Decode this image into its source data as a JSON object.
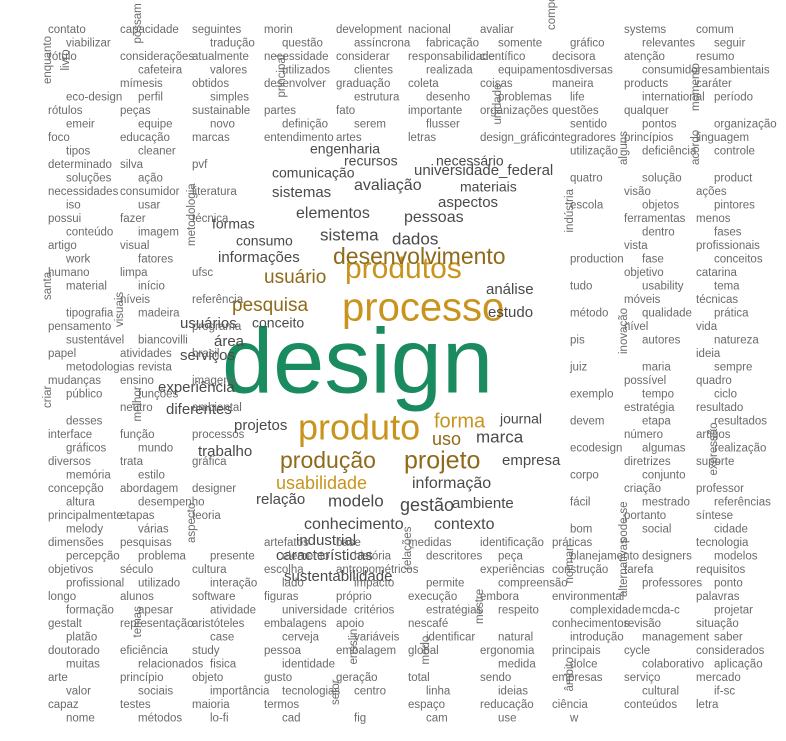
{
  "colors": {
    "hero": "#1a8a5f",
    "accent": "#c9941e",
    "accent_dark": "#8e6a1a",
    "text": "#4a4a4a",
    "muted": "#6b6b6b"
  },
  "cloud": {
    "hero": "design",
    "top": [
      "processo",
      "produtos",
      "produto",
      "desenvolvimento",
      "produção",
      "projeto",
      "usuário",
      "pesquisa",
      "forma",
      "usabilidade",
      "uso"
    ],
    "mid": [
      "informações",
      "sistema",
      "dados",
      "elementos",
      "pessoas",
      "avaliação",
      "aspectos",
      "análise",
      "estudo",
      "marca",
      "informação",
      "gestão",
      "modelo",
      "conhecimento",
      "contexto",
      "industrial",
      "características",
      "sustentabilidade",
      "empresa",
      "ambiente",
      "journal",
      "relação",
      "trabalho",
      "projetos",
      "diferentes",
      "experiência",
      "serviços",
      "área",
      "conceito",
      "usuários",
      "consumo",
      "formas",
      "sistemas",
      "universidade_federal",
      "materiais",
      "comunicação",
      "engenharia",
      "recursos",
      "necessário"
    ],
    "small": [
      "contato",
      "capacidade",
      "seguintes",
      "morin",
      "development",
      "nacional",
      "avaliar",
      "componentes",
      "systems",
      "comum",
      "viabilizar",
      "possam",
      "tradução",
      "questão",
      "assíncrona",
      "fabricação",
      "somente",
      "gráfico",
      "relevantes",
      "seguir",
      "rótulo",
      "considerações",
      "atualmente",
      "necessidade",
      "considerar",
      "responsabilidade",
      "científico",
      "decisora",
      "atenção",
      "resumo",
      "livro",
      "cafeteira",
      "valores",
      "utilizados",
      "clientes",
      "realizada",
      "equipamentos",
      "diversas",
      "consumidores",
      "ambientais",
      "enquanto",
      "mímesis",
      "obtidos",
      "desenvolver",
      "graduação",
      "coleta",
      "coisas",
      "maneira",
      "products",
      "caráter",
      "eco-design",
      "perfil",
      "simples",
      "principal",
      "estrutura",
      "desenho",
      "problemas",
      "life",
      "international",
      "período",
      "rótulos",
      "peças",
      "sustainable",
      "partes",
      "fato",
      "importante",
      "organizações",
      "questões",
      "qualquer",
      "momento",
      "emeir",
      "equipe",
      "novo",
      "definição",
      "serem",
      "flusser",
      "unidade",
      "sentido",
      "pontos",
      "organização",
      "foco",
      "educação",
      "marcas",
      "entendimento",
      "artes",
      "letras",
      "design_gráfico",
      "integradores",
      "princípios",
      "linguagem",
      "tipos",
      "cleaner",
      "utilização",
      "deficiência",
      "controle",
      "determinado",
      "silva",
      "pvf",
      "alguns",
      "acordo",
      "soluções",
      "ação",
      "quatro",
      "solução",
      "product",
      "necessidades",
      "consumidor",
      "literatura",
      "visão",
      "ações",
      "iso",
      "usar",
      "escola",
      "objetos",
      "pintores",
      "possui",
      "fazer",
      "técnica",
      "ferramentas",
      "menos",
      "conteúdo",
      "imagem",
      "indústria",
      "dentro",
      "fases",
      "artigo",
      "visual",
      "metodologia",
      "vista",
      "profissionais",
      "work",
      "fatores",
      "production",
      "fase",
      "conceitos",
      "humano",
      "limpa",
      "ufsc",
      "objetivo",
      "catarina",
      "material",
      "início",
      "tudo",
      "usability",
      "tema",
      "santa",
      "níveis",
      "referência",
      "móveis",
      "técnicas",
      "tipografia",
      "madeira",
      "método",
      "qualidade",
      "prática",
      "pensamento",
      "visuais",
      "programa",
      "nível",
      "vida",
      "sustentável",
      "biancovilli",
      "pis",
      "autores",
      "natureza",
      "papel",
      "atividades",
      "brasil",
      "inovação",
      "ideia",
      "metodologias",
      "revista",
      "juiz",
      "maria",
      "sempre",
      "mudanças",
      "ensino",
      "imagens",
      "possível",
      "quadro",
      "público",
      "funções",
      "exemplo",
      "tempo",
      "ciclo",
      "criar",
      "neutro",
      "ambiental",
      "estratégia",
      "resultado",
      "desses",
      "melhor",
      "devem",
      "etapa",
      "resultados",
      "interface",
      "função",
      "processos",
      "número",
      "artigos",
      "gráficos",
      "mundo",
      "ecodesign",
      "algumas",
      "realização",
      "diversos",
      "trata",
      "gráfica",
      "diretrizes",
      "suporte",
      "memória",
      "estilo",
      "corpo",
      "conjunto",
      "expressão",
      "concepção",
      "abordagem",
      "designer",
      "criação",
      "professor",
      "altura",
      "desempenho",
      "fácil",
      "mestrado",
      "referências",
      "principalmente",
      "etapas",
      "teoria",
      "portanto",
      "síntese",
      "melody",
      "várias",
      "bom",
      "social",
      "cidade",
      "dimensões",
      "pesquisas",
      "aspecto",
      "artefatos",
      "base",
      "medidas",
      "identificação",
      "práticas",
      "pode-se",
      "tecnologia",
      "percepção",
      "problema",
      "presente",
      "elemento",
      "história",
      "descritores",
      "peça",
      "planejamento",
      "designers",
      "modelos",
      "objetivos",
      "século",
      "cultura",
      "escolha",
      "antropométricos",
      "relações",
      "experiências",
      "construção",
      "tarefa",
      "requisitos",
      "profissional",
      "utilizado",
      "interação",
      "lado",
      "impacto",
      "permite",
      "compreensão",
      "norman",
      "professores",
      "ponto",
      "longo",
      "alunos",
      "software",
      "figuras",
      "próprio",
      "execução",
      "embora",
      "environmental",
      "alternativas",
      "palavras",
      "formação",
      "apesar",
      "atividade",
      "universidade",
      "critérios",
      "estratégias",
      "respeito",
      "complexidade",
      "mcda-c",
      "projetar",
      "gestalt",
      "representação",
      "aristóteles",
      "embalagens",
      "apoio",
      "nescafé",
      "mestre",
      "conhecimentos",
      "revisão",
      "situação",
      "platão",
      "temas",
      "case",
      "cerveja",
      "variáveis",
      "identificar",
      "natural",
      "introdução",
      "management",
      "saber",
      "doutorado",
      "eficiência",
      "study",
      "pessoa",
      "embalagem",
      "global",
      "ergonomia",
      "principais",
      "cycle",
      "considerados",
      "muitas",
      "relacionados",
      "fisica",
      "identidade",
      "ensslin",
      "modo",
      "medida",
      "dolce",
      "colaborativo",
      "aplicação",
      "arte",
      "princípio",
      "objeto",
      "gusto",
      "geração",
      "total",
      "sendo",
      "empresas",
      "serviço",
      "mercado",
      "valor",
      "sociais",
      "importância",
      "tecnologias",
      "centro",
      "linha",
      "ideias",
      "âmbito",
      "cultural",
      "if-sc",
      "capaz",
      "testes",
      "maioria",
      "termos",
      "setor",
      "espaço",
      "reducação",
      "ciência",
      "conteúdos",
      "letra",
      "nome",
      "métodos",
      "lo-fi",
      "cad",
      "fig",
      "cam",
      "use",
      "w"
    ]
  }
}
